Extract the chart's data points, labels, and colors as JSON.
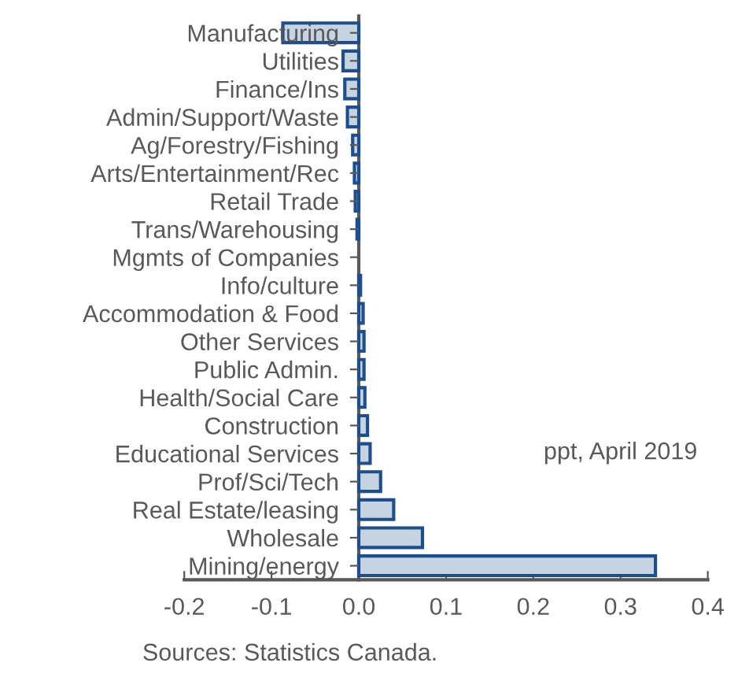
{
  "chart_data": {
    "type": "bar",
    "orientation": "horizontal",
    "categories": [
      "Manufacturing",
      "Utilities",
      "Finance/Ins",
      "Admin/Support/Waste",
      "Ag/Forestry/Fishing",
      "Arts/Entertainment/Rec",
      "Retail Trade",
      "Trans/Warehousing",
      "Mgmts of Companies",
      "Info/culture",
      "Accommodation & Food",
      "Other Services",
      "Public Admin.",
      "Health/Social Care",
      "Construction",
      "Educational Services",
      "Prof/Sci/Tech",
      "Real Estate/leasing",
      "Wholesale",
      "Mining/energy"
    ],
    "values": [
      -0.087,
      -0.018,
      -0.016,
      -0.013,
      -0.007,
      -0.005,
      -0.004,
      -0.002,
      0,
      0.002,
      0.005,
      0.006,
      0.006,
      0.007,
      0.01,
      0.013,
      0.025,
      0.04,
      0.073,
      0.34
    ],
    "color": "#c6d3e0",
    "xlim": [
      -0.2,
      0.4
    ],
    "xticks": [
      {
        "value": -0.2,
        "label": "-0.2"
      },
      {
        "value": -0.1,
        "label": "-0.1"
      },
      {
        "value": 0,
        "label": "0.0"
      },
      {
        "value": 0.1,
        "label": "0.1"
      },
      {
        "value": 0.2,
        "label": "0.2"
      },
      {
        "value": 0.3,
        "label": "0.3"
      },
      {
        "value": 0.4,
        "label": "0.4"
      }
    ],
    "grid": false,
    "legend": false,
    "annotations": [
      "ppt, April 2019",
      "Sources: Statistics Canada."
    ]
  }
}
